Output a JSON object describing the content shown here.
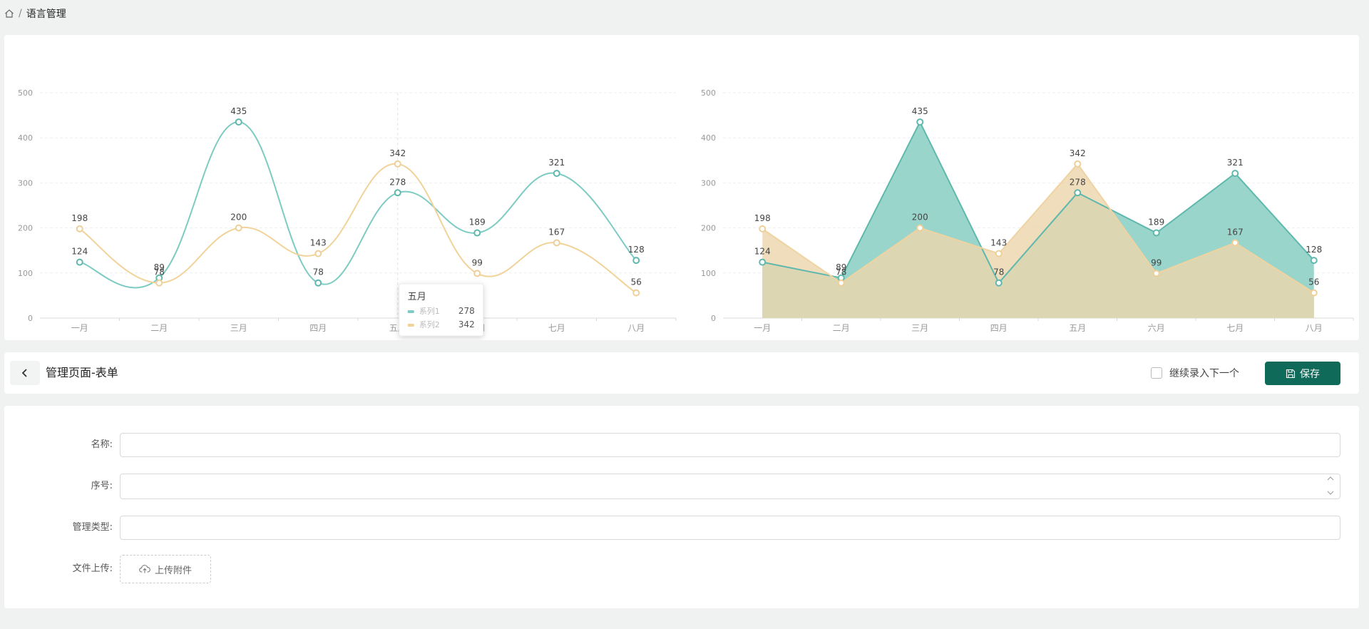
{
  "breadcrumb": {
    "separator": "/",
    "current": "语言管理"
  },
  "colors": {
    "series1": "#7dcbc2",
    "series2": "#f1d39a",
    "primary": "#0f6a5a"
  },
  "chart_data": [
    {
      "type": "line",
      "smooth": true,
      "categories": [
        "一月",
        "二月",
        "三月",
        "四月",
        "五月",
        "六月",
        "七月",
        "八月"
      ],
      "ylim": [
        0,
        500
      ],
      "yticks": [
        0,
        100,
        200,
        300,
        400,
        500
      ],
      "grid": true,
      "series": [
        {
          "name": "系列1",
          "values": [
            124,
            89,
            435,
            78,
            278,
            189,
            321,
            128
          ]
        },
        {
          "name": "系列2",
          "values": [
            198,
            78,
            200,
            143,
            342,
            99,
            167,
            56
          ]
        }
      ],
      "tooltip": {
        "category": "五月",
        "rows": [
          {
            "name": "系列1",
            "value": 278
          },
          {
            "name": "系列2",
            "value": 342
          }
        ]
      }
    },
    {
      "type": "area",
      "categories": [
        "一月",
        "二月",
        "三月",
        "四月",
        "五月",
        "六月",
        "七月",
        "八月"
      ],
      "ylim": [
        0,
        500
      ],
      "yticks": [
        0,
        100,
        200,
        300,
        400,
        500
      ],
      "grid": true,
      "series": [
        {
          "values": [
            124,
            89,
            435,
            78,
            278,
            189,
            321,
            128
          ]
        },
        {
          "values": [
            198,
            78,
            200,
            143,
            342,
            99,
            167,
            56
          ]
        }
      ]
    }
  ],
  "header": {
    "title": "管理页面-表单",
    "continue_label": "继续录入下一个",
    "save_label": "保存"
  },
  "form": {
    "name_label": "名称:",
    "name_value": "",
    "order_label": "序号:",
    "order_value": "",
    "type_label": "管理类型:",
    "type_value": "",
    "upload_label": "文件上传:",
    "upload_button": "上传附件"
  }
}
